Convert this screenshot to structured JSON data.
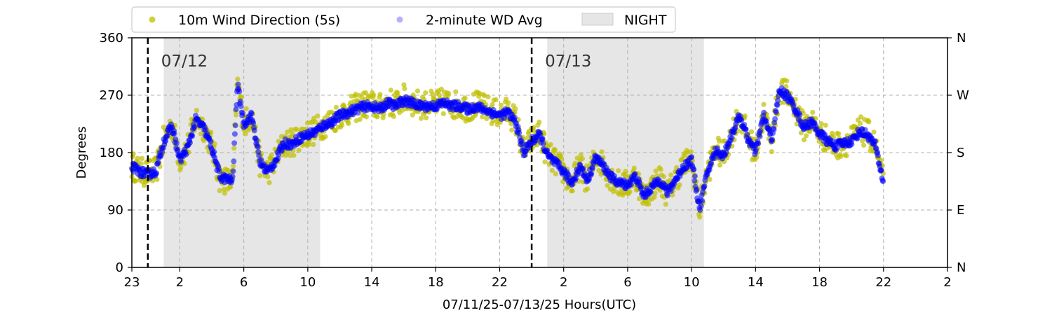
{
  "chart_data": {
    "type": "scatter",
    "xlabel": "07/11/25-07/13/25  Hours(UTC)",
    "ylabel": "Degrees",
    "x_unit": "hours since 07/11/25 00:00 UTC",
    "xlim": [
      23,
      74
    ],
    "ylim": [
      0,
      360
    ],
    "x_ticks": [
      {
        "x": 23,
        "label": "23"
      },
      {
        "x": 26,
        "label": "2"
      },
      {
        "x": 30,
        "label": "6"
      },
      {
        "x": 34,
        "label": "10"
      },
      {
        "x": 38,
        "label": "14"
      },
      {
        "x": 42,
        "label": "18"
      },
      {
        "x": 46,
        "label": "22"
      },
      {
        "x": 50,
        "label": "2"
      },
      {
        "x": 54,
        "label": "6"
      },
      {
        "x": 58,
        "label": "10"
      },
      {
        "x": 62,
        "label": "14"
      },
      {
        "x": 66,
        "label": "18"
      },
      {
        "x": 70,
        "label": "22"
      },
      {
        "x": 74,
        "label": "2"
      }
    ],
    "y_ticks": [
      0,
      90,
      180,
      270,
      360
    ],
    "y2_ticks": [
      {
        "y": 0,
        "label": "N"
      },
      {
        "y": 90,
        "label": "E"
      },
      {
        "y": 180,
        "label": "S"
      },
      {
        "y": 270,
        "label": "W"
      },
      {
        "y": 360,
        "label": "N"
      }
    ],
    "grid": true,
    "legend": {
      "placement": "top-left, above plot",
      "entries": [
        {
          "label": "10m Wind Direction (5s)",
          "color": "#bfbf00",
          "kind": "marker"
        },
        {
          "label": "2-minute WD Avg",
          "color": "#0000ff",
          "kind": "marker"
        },
        {
          "label": "NIGHT",
          "color": "#e6e6e6",
          "kind": "patch"
        }
      ]
    },
    "night_periods": [
      [
        24.99,
        34.77
      ],
      [
        48.97,
        58.77
      ]
    ],
    "day_markers": [
      {
        "x": 24,
        "label": "07/12"
      },
      {
        "x": 48,
        "label": "07/13"
      }
    ],
    "series": [
      {
        "name": "10m Wind Direction (5s)",
        "color": "#bfbf00",
        "scatter_spread_deg": 22,
        "x": [
          23,
          23.5,
          24,
          24.5,
          25,
          25.5,
          26,
          26.5,
          27,
          27.5,
          28,
          28.5,
          29,
          29.3,
          29.6,
          30,
          30.5,
          31,
          31.5,
          32,
          32.5,
          33,
          33.5,
          34,
          34.5,
          35,
          35.5,
          36,
          36.5,
          37,
          37.5,
          38,
          38.5,
          39,
          39.5,
          40,
          40.5,
          41,
          41.5,
          42,
          42.5,
          43,
          43.5,
          44,
          44.5,
          45,
          45.5,
          46,
          46.5,
          47,
          47.5,
          48,
          48.5,
          49,
          49.5,
          50,
          50.5,
          51,
          51.5,
          52,
          52.5,
          53,
          53.5,
          54,
          54.5,
          55,
          55.5,
          56,
          56.5,
          57,
          57.5,
          58,
          58.5,
          59,
          59.5,
          60,
          60.5,
          61,
          61.5,
          62,
          62.5,
          63,
          63.5,
          64,
          64.5,
          65,
          65.5,
          66,
          66.5,
          67,
          67.5,
          68,
          68.5,
          69,
          69.5,
          70
        ],
        "y": [
          160,
          150,
          148,
          150,
          200,
          225,
          170,
          190,
          235,
          220,
          190,
          140,
          135,
          135,
          290,
          225,
          240,
          165,
          150,
          170,
          195,
          195,
          205,
          210,
          215,
          225,
          230,
          240,
          245,
          250,
          255,
          255,
          250,
          260,
          255,
          265,
          260,
          255,
          255,
          255,
          260,
          255,
          255,
          250,
          255,
          250,
          245,
          240,
          245,
          230,
          180,
          200,
          210,
          175,
          165,
          150,
          130,
          160,
          135,
          175,
          160,
          140,
          130,
          130,
          145,
          110,
          125,
          140,
          115,
          140,
          160,
          170,
          90,
          150,
          185,
          175,
          210,
          240,
          205,
          180,
          240,
          200,
          280,
          270,
          250,
          220,
          230,
          210,
          200,
          190,
          195,
          200,
          215,
          210,
          190,
          130
        ]
      },
      {
        "name": "2-minute WD Avg",
        "color": "#0000ff",
        "x": [
          23,
          23.5,
          24,
          24.5,
          25,
          25.5,
          26,
          26.5,
          27,
          27.5,
          28,
          28.5,
          29,
          29.3,
          29.6,
          30,
          30.5,
          31,
          31.5,
          32,
          32.5,
          33,
          33.5,
          34,
          34.5,
          35,
          35.5,
          36,
          36.5,
          37,
          37.5,
          38,
          38.5,
          39,
          39.5,
          40,
          40.5,
          41,
          41.5,
          42,
          42.5,
          43,
          43.5,
          44,
          44.5,
          45,
          45.5,
          46,
          46.5,
          47,
          47.5,
          48,
          48.5,
          49,
          49.5,
          50,
          50.5,
          51,
          51.5,
          52,
          52.5,
          53,
          53.5,
          54,
          54.5,
          55,
          55.5,
          56,
          56.5,
          57,
          57.5,
          58,
          58.5,
          59,
          59.5,
          60,
          60.5,
          61,
          61.5,
          62,
          62.5,
          63,
          63.5,
          64,
          64.5,
          65,
          65.5,
          66,
          66.5,
          67,
          67.5,
          68,
          68.5,
          69,
          69.5,
          70
        ],
        "y": [
          158,
          150,
          146,
          150,
          198,
          222,
          168,
          188,
          232,
          218,
          188,
          142,
          138,
          136,
          288,
          225,
          238,
          165,
          150,
          168,
          195,
          193,
          203,
          208,
          213,
          223,
          228,
          238,
          243,
          248,
          252,
          253,
          248,
          258,
          253,
          262,
          258,
          253,
          253,
          253,
          258,
          253,
          253,
          248,
          252,
          248,
          243,
          238,
          243,
          228,
          180,
          198,
          208,
          175,
          163,
          150,
          132,
          158,
          137,
          173,
          158,
          140,
          132,
          130,
          143,
          112,
          125,
          138,
          117,
          138,
          158,
          168,
          92,
          150,
          183,
          175,
          208,
          238,
          203,
          180,
          238,
          200,
          278,
          268,
          248,
          220,
          228,
          210,
          198,
          190,
          195,
          198,
          213,
          208,
          190,
          132
        ]
      }
    ]
  }
}
